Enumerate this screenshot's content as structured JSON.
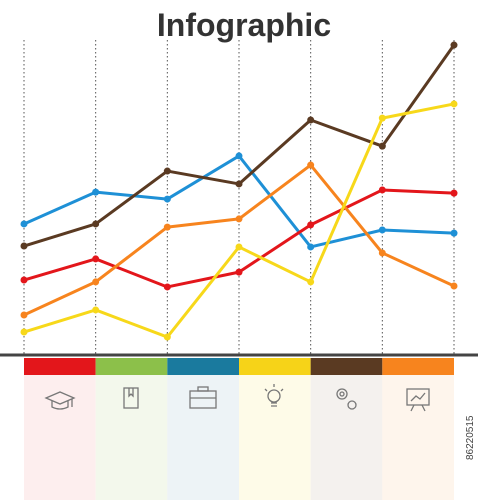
{
  "chart_data": {
    "type": "line",
    "title": "Infographic",
    "categories": [
      null,
      null,
      null,
      null,
      null,
      null,
      null
    ],
    "ylim": [
      0,
      100
    ],
    "series": [
      {
        "name": null,
        "color": "#1e90d6",
        "values": [
          41.6,
          51.7,
          49.5,
          63.2,
          34.3,
          39.7,
          38.7
        ]
      },
      {
        "name": null,
        "color": "#5a3a22",
        "values": [
          34.6,
          41.6,
          58.4,
          54.3,
          74.6,
          66.3,
          98.4
        ]
      },
      {
        "name": null,
        "color": "#e3161b",
        "values": [
          23.8,
          30.5,
          21.6,
          26.3,
          41.3,
          52.4,
          51.4
        ]
      },
      {
        "name": null,
        "color": "#f7841e",
        "values": [
          12.7,
          23.2,
          40.6,
          43.2,
          60.3,
          32.4,
          21.9
        ]
      },
      {
        "name": null,
        "color": "#f7d81a",
        "values": [
          7.3,
          14.3,
          5.7,
          34.3,
          23.2,
          75.2,
          79.7
        ]
      }
    ],
    "band_colors": [
      "#e3161b",
      "#8cc04a",
      "#1a7a9e",
      "#f6d318",
      "#5a3a22",
      "#f7841e"
    ],
    "watermark": "86220515"
  }
}
